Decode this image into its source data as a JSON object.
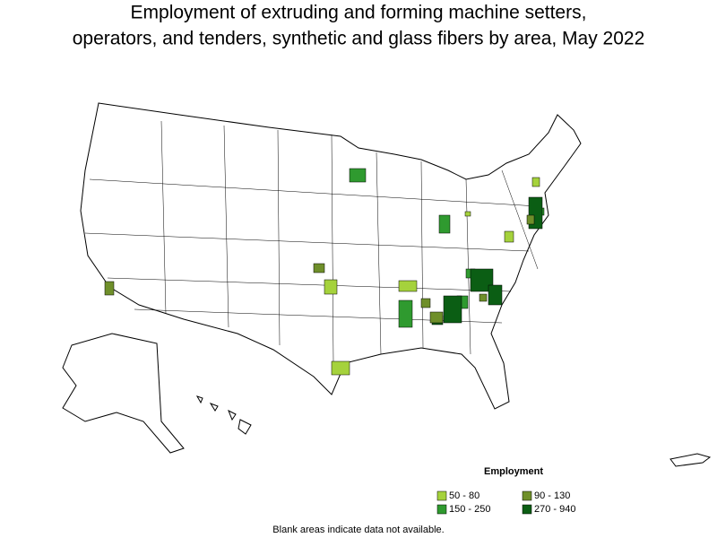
{
  "title": [
    "Employment of extruding and forming machine setters,",
    "operators, and tenders, synthetic and glass fibers by area, May 2022"
  ],
  "legend": {
    "title": "Employment",
    "items": [
      {
        "label": "50 - 80",
        "color": "#a5d23c"
      },
      {
        "label": "90 - 130",
        "color": "#6f8f2a"
      },
      {
        "label": "150 - 250",
        "color": "#2f9a2f"
      },
      {
        "label": "270 - 940",
        "color": "#0b5e14"
      }
    ]
  },
  "footnote": "Blank areas indicate data not available."
}
